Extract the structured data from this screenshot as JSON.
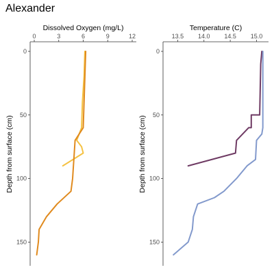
{
  "title": "Alexander",
  "chart_data": [
    {
      "type": "line",
      "xlabel": "Dissolved Oxygen (mg/L)",
      "ylabel": "Depth from surface (cm)",
      "xlim": [
        0,
        12
      ],
      "ylim": [
        0,
        160
      ],
      "y_reversed": true,
      "x_axis_position": "top",
      "x_ticks": [
        0,
        3,
        6,
        9,
        12
      ],
      "y_ticks": [
        0,
        50,
        100,
        150
      ],
      "grid": false,
      "series": [
        {
          "color": "#f5c243",
          "points": [
            [
              6.2,
              0
            ],
            [
              6.1,
              20
            ],
            [
              5.9,
              40
            ],
            [
              5.8,
              60
            ],
            [
              5.2,
              70
            ],
            [
              5.8,
              75
            ],
            [
              6.0,
              80
            ],
            [
              3.5,
              90
            ]
          ]
        },
        {
          "color": "#e08a1e",
          "points": [
            [
              6.3,
              0
            ],
            [
              6.2,
              20
            ],
            [
              6.1,
              40
            ],
            [
              6.0,
              60
            ],
            [
              5.0,
              70
            ],
            [
              4.9,
              80
            ],
            [
              4.7,
              100
            ],
            [
              4.5,
              110
            ],
            [
              2.8,
              120
            ],
            [
              1.5,
              130
            ],
            [
              0.6,
              140
            ],
            [
              0.5,
              150
            ],
            [
              0.3,
              160
            ]
          ]
        }
      ]
    },
    {
      "type": "line",
      "xlabel": "Temperature (C)",
      "ylabel": "Depth from surface (cm)",
      "xlim": [
        13.3,
        15.15
      ],
      "ylim": [
        0,
        160
      ],
      "y_reversed": true,
      "x_axis_position": "top",
      "x_ticks": [
        13.5,
        14.0,
        14.5,
        15.0
      ],
      "x_tick_labels": [
        "13.5",
        "14.0",
        "14.5",
        "15.0"
      ],
      "y_ticks": [
        0,
        50,
        100,
        150
      ],
      "grid": false,
      "series": [
        {
          "color": "#6e3a63",
          "points": [
            [
              15.1,
              0
            ],
            [
              15.08,
              10
            ],
            [
              15.06,
              50
            ],
            [
              14.9,
              50
            ],
            [
              14.9,
              60
            ],
            [
              14.85,
              60
            ],
            [
              14.62,
              70
            ],
            [
              14.6,
              80
            ],
            [
              13.7,
              90
            ]
          ]
        },
        {
          "color": "#8299cc",
          "points": [
            [
              15.12,
              0
            ],
            [
              15.12,
              10
            ],
            [
              15.12,
              60
            ],
            [
              15.1,
              65
            ],
            [
              15.0,
              70
            ],
            [
              14.98,
              85
            ],
            [
              14.82,
              90
            ],
            [
              14.62,
              100
            ],
            [
              14.38,
              110
            ],
            [
              14.2,
              115
            ],
            [
              13.88,
              120
            ],
            [
              13.8,
              130
            ],
            [
              13.78,
              140
            ],
            [
              13.7,
              150
            ],
            [
              13.42,
              160
            ]
          ]
        }
      ]
    }
  ]
}
